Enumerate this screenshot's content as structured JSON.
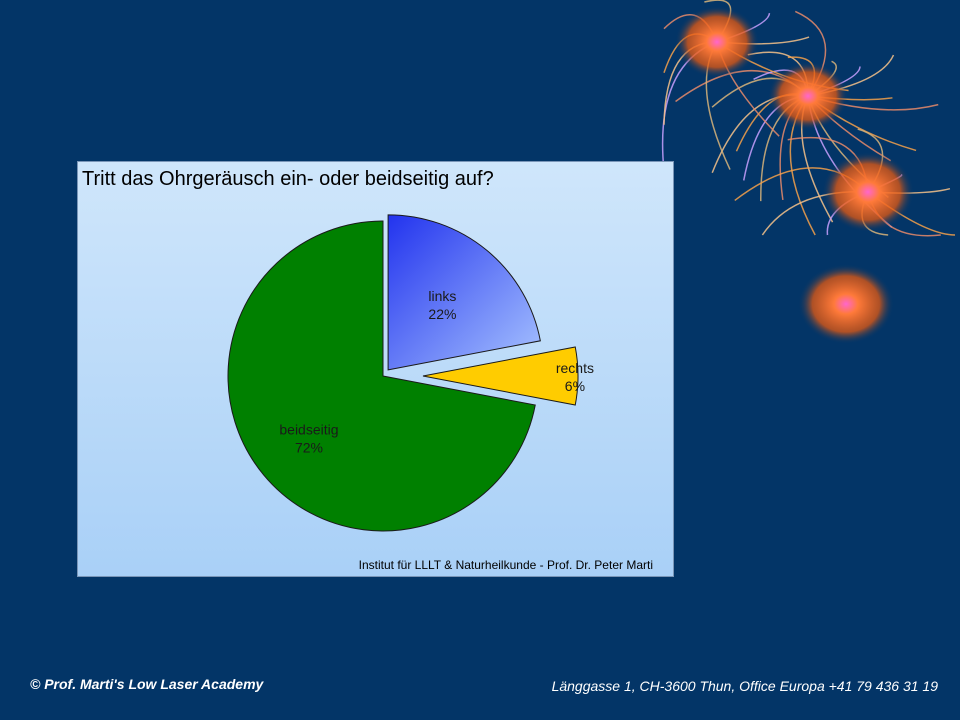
{
  "chart_data": {
    "type": "pie",
    "title": "Tritt das Ohrgeräusch ein- oder beidseitig auf?",
    "credit": "Institut für LLLT & Naturheilkunde - Prof. Dr. Peter Marti",
    "slices": [
      {
        "name": "links",
        "value": 22,
        "label": "22%",
        "color": "#4a6cff",
        "exploded": true
      },
      {
        "name": "rechts",
        "value": 6,
        "label": "6%",
        "color": "#ffcc00",
        "exploded": true
      },
      {
        "name": "beidseitig",
        "value": 72,
        "label": "72%",
        "color": "#008000",
        "exploded": false
      }
    ],
    "start": "12 o'clock",
    "direction": "clockwise"
  },
  "footer": {
    "left": "© Prof. Marti's Low Laser Academy",
    "right": "Länggasse 1, CH-3600 Thun, Office Europa +41 79 436 31 19"
  },
  "colors": {
    "background": "#033567",
    "chart_bg": "#bcdcf9"
  }
}
